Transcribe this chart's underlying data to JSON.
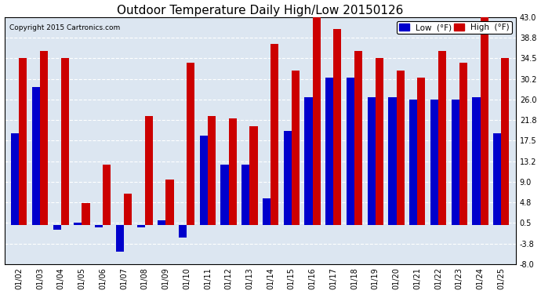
{
  "title": "Outdoor Temperature Daily High/Low 20150126",
  "copyright": "Copyright 2015 Cartronics.com",
  "legend_low": "Low  (°F)",
  "legend_high": "High  (°F)",
  "dates": [
    "01/02",
    "01/03",
    "01/04",
    "01/05",
    "01/06",
    "01/07",
    "01/08",
    "01/09",
    "01/10",
    "01/11",
    "01/12",
    "01/13",
    "01/14",
    "01/15",
    "01/16",
    "01/17",
    "01/18",
    "01/19",
    "01/20",
    "01/21",
    "01/22",
    "01/23",
    "01/24",
    "01/25"
  ],
  "high": [
    34.5,
    36.0,
    34.5,
    4.5,
    12.5,
    6.5,
    22.5,
    9.5,
    33.5,
    22.5,
    22.0,
    20.5,
    37.5,
    32.0,
    43.5,
    40.5,
    36.0,
    34.5,
    32.0,
    30.5,
    36.0,
    33.5,
    43.0,
    34.5
  ],
  "low": [
    19.0,
    28.5,
    -1.0,
    0.5,
    -0.5,
    -5.5,
    -0.5,
    1.0,
    -2.5,
    18.5,
    12.5,
    12.5,
    5.5,
    19.5,
    26.5,
    30.5,
    30.5,
    26.5,
    26.5,
    26.0,
    26.0,
    26.0,
    26.5,
    19.0
  ],
  "ylim": [
    -8.0,
    43.0
  ],
  "yticks": [
    -8.0,
    -3.8,
    0.5,
    4.8,
    9.0,
    13.2,
    17.5,
    21.8,
    26.0,
    30.2,
    34.5,
    38.8,
    43.0
  ],
  "color_low": "#0000cc",
  "color_high": "#cc0000",
  "bg_color": "#ffffff",
  "plot_bg_color": "#dce6f1",
  "grid_color": "#ffffff",
  "bar_width": 0.38,
  "title_fontsize": 11,
  "tick_fontsize": 7,
  "legend_fontsize": 7.5
}
